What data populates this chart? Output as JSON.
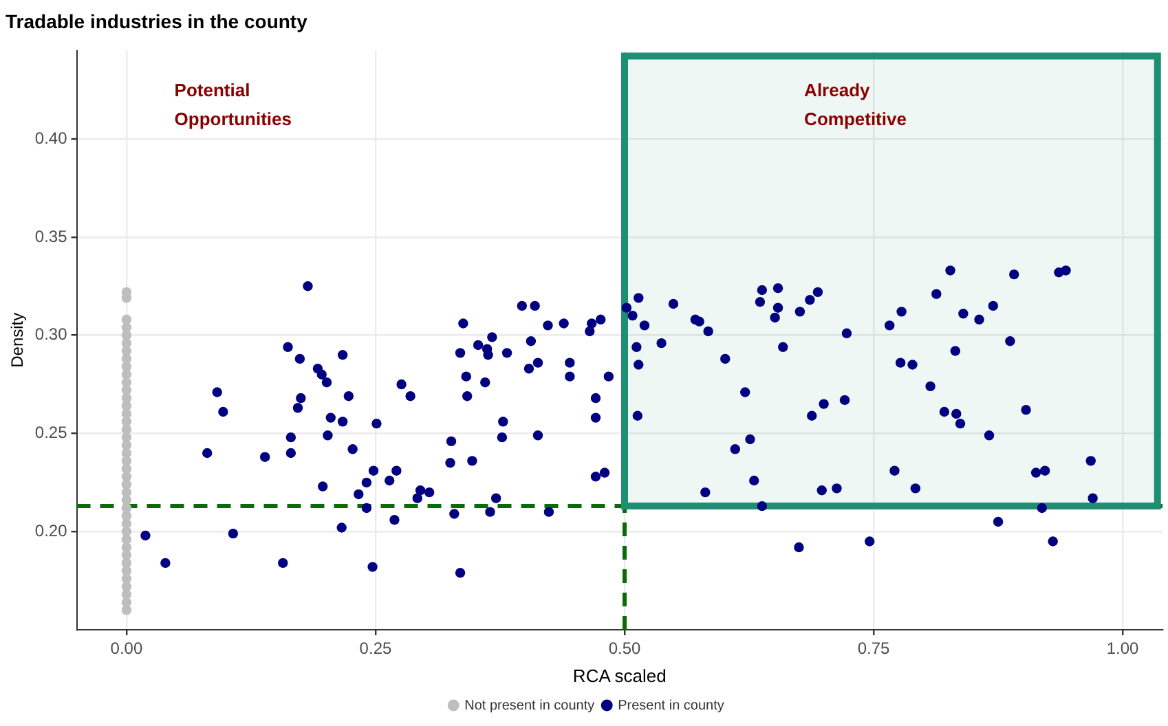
{
  "chart_data": {
    "type": "scatter",
    "title": "Tradable industries in the county",
    "xlabel": "RCA scaled",
    "ylabel": "Density",
    "xlim": [
      -0.05,
      1.04
    ],
    "ylim": [
      0.15,
      0.445
    ],
    "xticks": [
      {
        "value": 0,
        "label": "0.00"
      },
      {
        "value": 0.25,
        "label": "0.25"
      },
      {
        "value": 0.5,
        "label": "0.50"
      },
      {
        "value": 0.75,
        "label": "0.75"
      },
      {
        "value": 1,
        "label": "1.00"
      }
    ],
    "yticks": [
      {
        "value": 0.2,
        "label": "0.20"
      },
      {
        "value": 0.25,
        "label": "0.25"
      },
      {
        "value": 0.3,
        "label": "0.30"
      },
      {
        "value": 0.35,
        "label": "0.35"
      },
      {
        "value": 0.4,
        "label": "0.40"
      }
    ],
    "grid": true,
    "legend": "bottom",
    "marker": "circle",
    "annotations": [
      "Potential Opportunities",
      "Already Competitive"
    ],
    "ref_lines": [
      {
        "axis": "y",
        "value": 0.213,
        "color": "#0b6b0b",
        "line_style": "dashed"
      },
      {
        "axis": "x",
        "value": 0.5,
        "color": "#0b6b0b",
        "line_style": "dashed"
      }
    ],
    "bands": [
      {
        "axis": "x",
        "from": 0.5,
        "to": 1.035,
        "color": "#1f8f73"
      }
    ],
    "series": [
      {
        "name": "Not present in county",
        "color": "#bebebe",
        "x": [
          0,
          0,
          0,
          0,
          0,
          0,
          0,
          0,
          0,
          0,
          0,
          0,
          0,
          0,
          0,
          0,
          0,
          0,
          0,
          0,
          0,
          0,
          0,
          0,
          0,
          0,
          0,
          0,
          0,
          0,
          0,
          0,
          0,
          0,
          0,
          0,
          0,
          0,
          0,
          0
        ],
        "values": [
          0.322,
          0.319,
          0.308,
          0.304,
          0.3,
          0.296,
          0.292,
          0.288,
          0.284,
          0.28,
          0.276,
          0.272,
          0.268,
          0.264,
          0.26,
          0.256,
          0.252,
          0.248,
          0.244,
          0.24,
          0.236,
          0.232,
          0.228,
          0.224,
          0.22,
          0.216,
          0.212,
          0.208,
          0.204,
          0.2,
          0.196,
          0.192,
          0.188,
          0.184,
          0.18,
          0.176,
          0.172,
          0.168,
          0.164,
          0.16
        ]
      },
      {
        "name": "Present in county",
        "color": "#000080",
        "x": [
          0.182,
          0.162,
          0.174,
          0.217,
          0.192,
          0.196,
          0.201,
          0.091,
          0.276,
          0.285,
          0.223,
          0.175,
          0.097,
          0.172,
          0.205,
          0.217,
          0.251,
          0.165,
          0.202,
          0.081,
          0.139,
          0.165,
          0.227,
          0.248,
          0.271,
          0.241,
          0.264,
          0.197,
          0.233,
          0.241,
          0.292,
          0.269,
          0.216,
          0.019,
          0.107,
          0.039,
          0.157,
          0.247,
          0.397,
          0.41,
          0.338,
          0.423,
          0.439,
          0.467,
          0.476,
          0.465,
          0.502,
          0.514,
          0.508,
          0.52,
          0.549,
          0.537,
          0.512,
          0.514,
          0.513,
          0.353,
          0.367,
          0.362,
          0.363,
          0.335,
          0.382,
          0.406,
          0.404,
          0.413,
          0.445,
          0.445,
          0.484,
          0.341,
          0.36,
          0.342,
          0.471,
          0.471,
          0.378,
          0.377,
          0.413,
          0.326,
          0.325,
          0.347,
          0.471,
          0.48,
          0.295,
          0.304,
          0.371,
          0.365,
          0.329,
          0.424,
          0.335,
          0.571,
          0.575,
          0.584,
          0.601,
          0.638,
          0.654,
          0.636,
          0.654,
          0.651,
          0.676,
          0.686,
          0.694,
          0.723,
          0.659,
          0.621,
          0.688,
          0.7,
          0.721,
          0.611,
          0.626,
          0.63,
          0.581,
          0.698,
          0.713,
          0.638,
          0.675,
          0.746,
          0.766,
          0.778,
          0.777,
          0.789,
          0.771,
          0.792,
          0.827,
          0.813,
          0.84,
          0.856,
          0.87,
          0.891,
          0.936,
          0.943,
          0.887,
          0.832,
          0.807,
          0.821,
          0.833,
          0.837,
          0.866,
          0.903,
          0.968,
          0.913,
          0.922,
          0.97,
          0.919,
          0.875,
          0.93
        ],
        "values": [
          0.325,
          0.294,
          0.288,
          0.29,
          0.283,
          0.28,
          0.276,
          0.271,
          0.275,
          0.269,
          0.269,
          0.268,
          0.261,
          0.263,
          0.258,
          0.256,
          0.255,
          0.248,
          0.249,
          0.24,
          0.238,
          0.24,
          0.242,
          0.231,
          0.231,
          0.225,
          0.226,
          0.223,
          0.219,
          0.212,
          0.217,
          0.206,
          0.202,
          0.198,
          0.199,
          0.184,
          0.184,
          0.182,
          0.315,
          0.315,
          0.306,
          0.305,
          0.306,
          0.306,
          0.308,
          0.302,
          0.314,
          0.319,
          0.31,
          0.305,
          0.316,
          0.296,
          0.294,
          0.285,
          0.259,
          0.295,
          0.299,
          0.293,
          0.29,
          0.291,
          0.291,
          0.297,
          0.283,
          0.286,
          0.286,
          0.279,
          0.279,
          0.279,
          0.276,
          0.269,
          0.268,
          0.258,
          0.256,
          0.248,
          0.249,
          0.246,
          0.235,
          0.236,
          0.228,
          0.23,
          0.221,
          0.22,
          0.217,
          0.21,
          0.209,
          0.21,
          0.179,
          0.308,
          0.307,
          0.302,
          0.288,
          0.323,
          0.324,
          0.317,
          0.314,
          0.309,
          0.312,
          0.318,
          0.322,
          0.301,
          0.294,
          0.271,
          0.259,
          0.265,
          0.267,
          0.242,
          0.247,
          0.226,
          0.22,
          0.221,
          0.222,
          0.213,
          0.192,
          0.195,
          0.305,
          0.312,
          0.286,
          0.285,
          0.231,
          0.222,
          0.333,
          0.321,
          0.311,
          0.308,
          0.315,
          0.331,
          0.332,
          0.333,
          0.297,
          0.292,
          0.274,
          0.261,
          0.26,
          0.255,
          0.249,
          0.262,
          0.236,
          0.23,
          0.231,
          0.217,
          0.212,
          0.205,
          0.195
        ]
      }
    ]
  }
}
